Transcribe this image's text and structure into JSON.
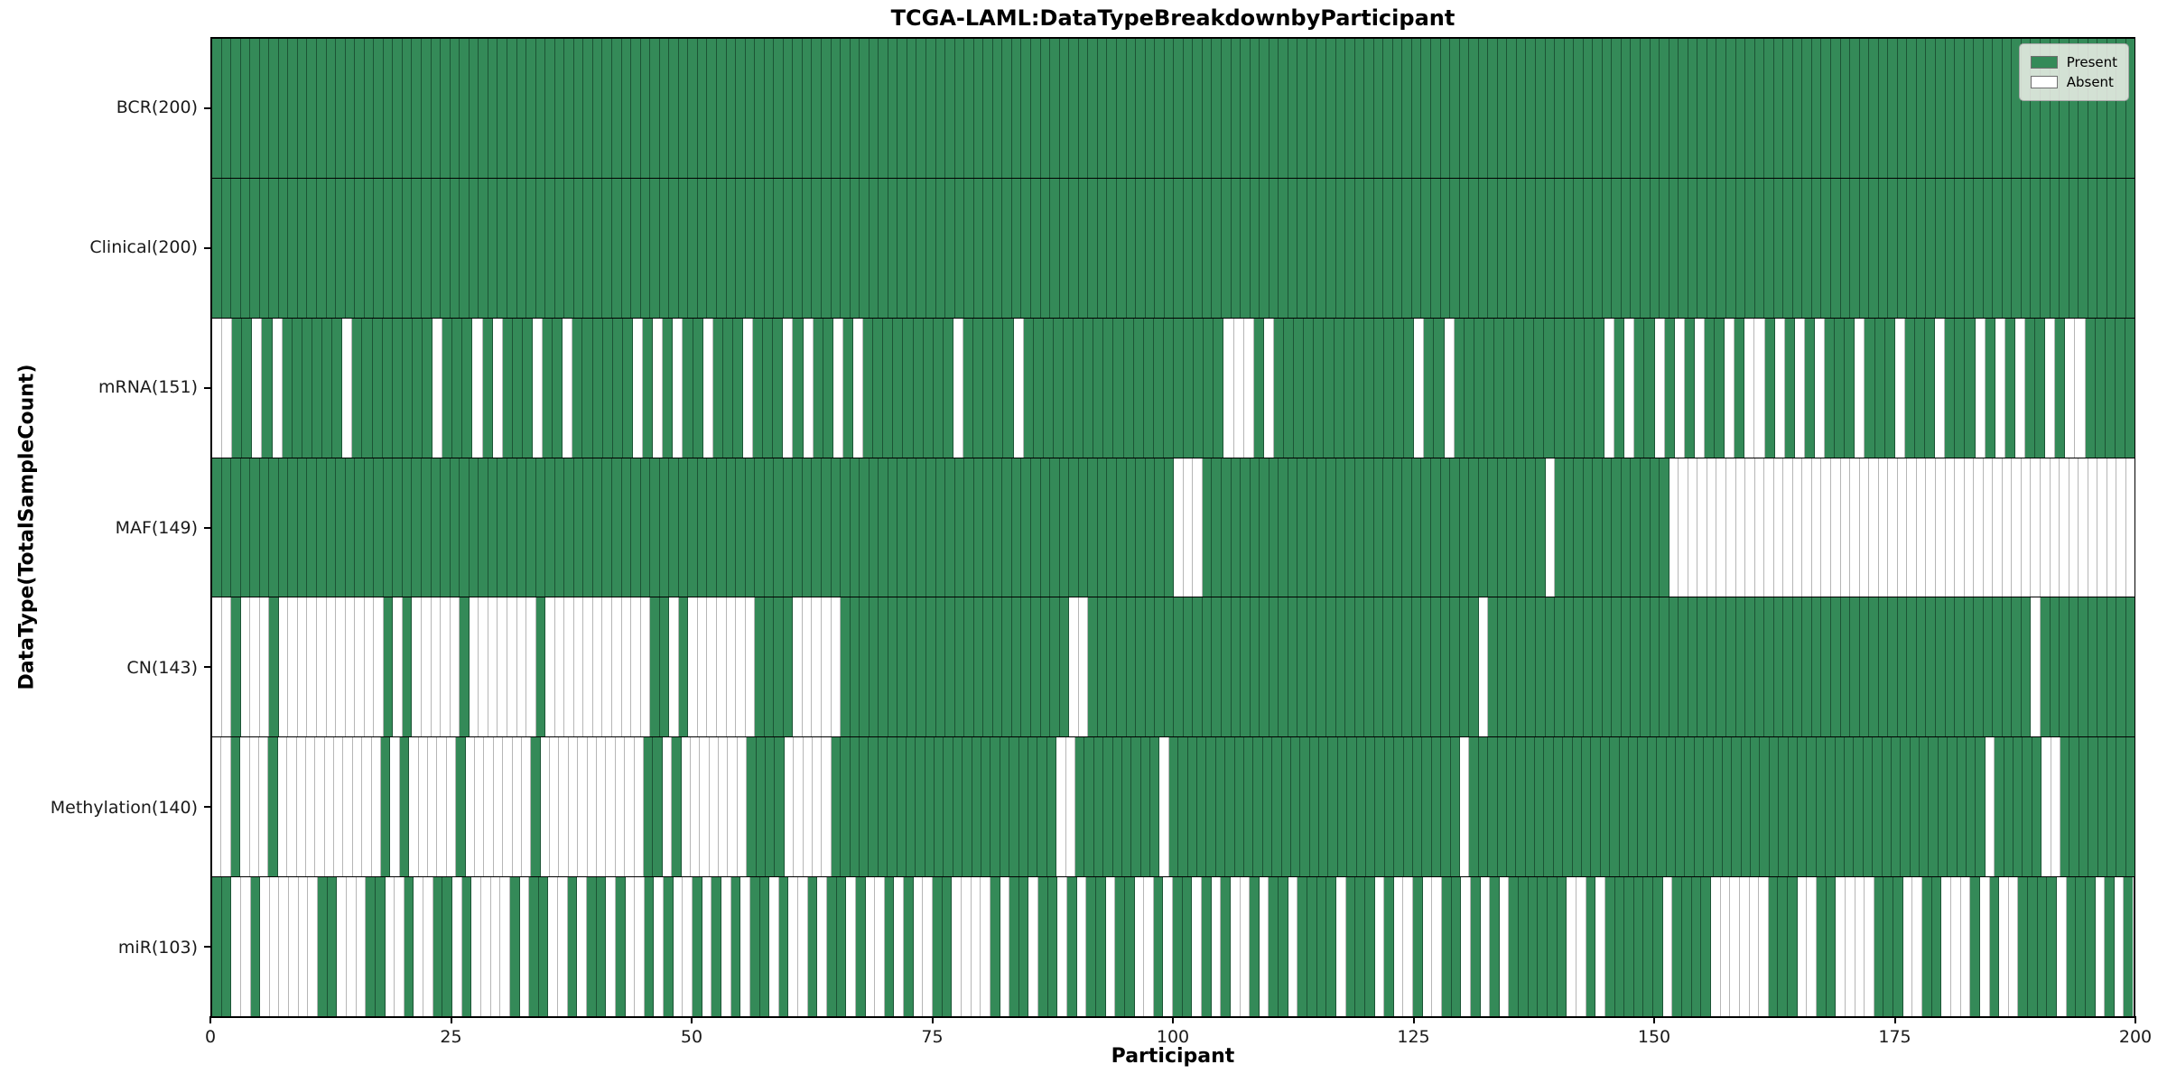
{
  "title": "TCGA-LAML: Data Type Breakdown by Participant",
  "xlabel": "Participant",
  "ylabel": "Data Type (Total Sample Count)",
  "legend": {
    "present_label": "Present",
    "absent_label": "Absent"
  },
  "colors": {
    "present": "#348a58",
    "absent": "#ffffff"
  },
  "chart_data": {
    "type": "heatmap",
    "title": "TCGA-LAML: Data Type Breakdown by Participant",
    "xlabel": "Participant",
    "ylabel": "Data Type (Total Sample Count)",
    "n_participants": 200,
    "x_range": [
      0,
      200
    ],
    "x_ticks": [
      0,
      25,
      50,
      75,
      100,
      125,
      150,
      175,
      200
    ],
    "legend_entries": [
      "Present",
      "Absent"
    ],
    "legend_position": "upper right",
    "cell_values": {
      "present": 1,
      "absent": 0
    },
    "rows": [
      {
        "name": "BCR",
        "label": "BCR (200)",
        "total": 200,
        "presence": "1111111111111111111111111111111111111111111111111111111111111111111111111111111111111111111111111111111111111111111111111111111111111111111111111111111111111111111111111111111111111111111111111111111111"
      },
      {
        "name": "Clinical",
        "label": "Clinical (200)",
        "total": 200,
        "presence": "1111111111111111111111111111111111111111111111111111111111111111111111111111111111111111111111111111111111111111111111111111111111111111111111111111111111111111111111111111111111111111111111111111111111"
      },
      {
        "name": "mRNA",
        "label": "mRNA (151)",
        "total": 151,
        "presence": "0011010111111011111111011101011101101111110101011011101110101101011111111101111101111111111111111111100010111111111111110110111111111111111010110101011010010101011101110111011101010110100111 11"
      },
      {
        "name": "MAF",
        "label": "MAF (149)",
        "total": 149,
        "presence": "1111111111111111111111111111111111111111111111111111111111111111111111111111111111111111111111111111100011111111111111111111111111111111111101111111111110000000000000000000000000000000000000000000000000"
      },
      {
        "name": "CN",
        "label": "CN (143)",
        "total": 143,
        "presence": "0010001000000000001010000010000000100000000000110100000001111000001111111111111111111111110011111111111111111111111111111111111111111011111111111111111111111111111111111111111111111111111111101111111111"
      },
      {
        "name": "Methylation",
        "label": "Methylation (140)",
        "total": 140,
        "presence": "0010001000000000001010000010000000100000000000110100000001111000001111111111111111111111110011111111101111111111111111111111111111111011111111111111111111111111111111111111111111111111111110111110011111111"
      },
      {
        "name": "miR",
        "label": "miR (103)",
        "total": 103,
        "presence": "1100100000011000110010011010000101100101101001010010101011010010110100101001100001011011010110110010110101001011011110111010010011010101111110010111111011110000001110011000011100110001010011110111 0101"
      }
    ]
  }
}
